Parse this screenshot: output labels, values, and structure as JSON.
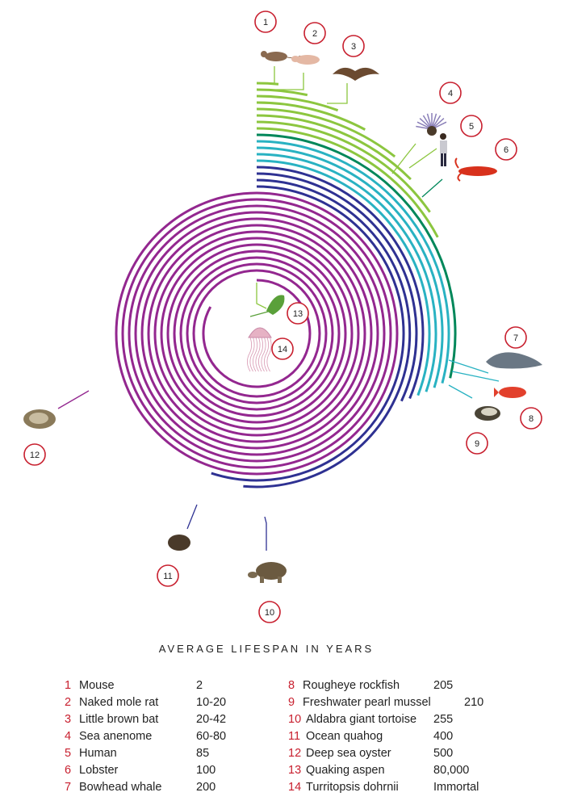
{
  "title": "AVERAGE LIFESPAN IN YEARS",
  "colors": {
    "light_green": "#8cc63f",
    "dark_green": "#00875a",
    "teal": "#29b2c2",
    "navy": "#2e3192",
    "purple": "#93278f",
    "marker_ring": "#c8202f"
  },
  "species": [
    {
      "num": "1",
      "name": "Mouse",
      "lifespan": "2"
    },
    {
      "num": "2",
      "name": "Naked mole rat",
      "lifespan": "10-20"
    },
    {
      "num": "3",
      "name": "Little brown bat",
      "lifespan": "20-42"
    },
    {
      "num": "4",
      "name": "Sea anenome",
      "lifespan": "60-80"
    },
    {
      "num": "5",
      "name": "Human",
      "lifespan": "85"
    },
    {
      "num": "6",
      "name": "Lobster",
      "lifespan": "100"
    },
    {
      "num": "7",
      "name": "Bowhead whale",
      "lifespan": "200"
    },
    {
      "num": "8",
      "name": "Rougheye rockfish",
      "lifespan": "205"
    },
    {
      "num": "9",
      "name": "Freshwater pearl mussel",
      "lifespan": "210"
    },
    {
      "num": "10",
      "name": "Aldabra giant tortoise",
      "lifespan": "255"
    },
    {
      "num": "11",
      "name": "Ocean quahog",
      "lifespan": "400"
    },
    {
      "num": "12",
      "name": "Deep sea oyster",
      "lifespan": "500"
    },
    {
      "num": "13",
      "name": "Quaking aspen",
      "lifespan": "80,000"
    },
    {
      "num": "14",
      "name": "Turritopsis dohrnii",
      "lifespan": "Immortal"
    }
  ],
  "illustrations": [
    "mouse-icon",
    "naked-mole-rat-icon",
    "bat-icon",
    "sea-anemone-icon",
    "human-icon",
    "lobster-icon",
    "whale-icon",
    "rockfish-icon",
    "mussel-icon",
    "tortoise-icon",
    "quahog-icon",
    "oyster-icon",
    "aspen-leaf-icon",
    "jellyfish-icon"
  ]
}
